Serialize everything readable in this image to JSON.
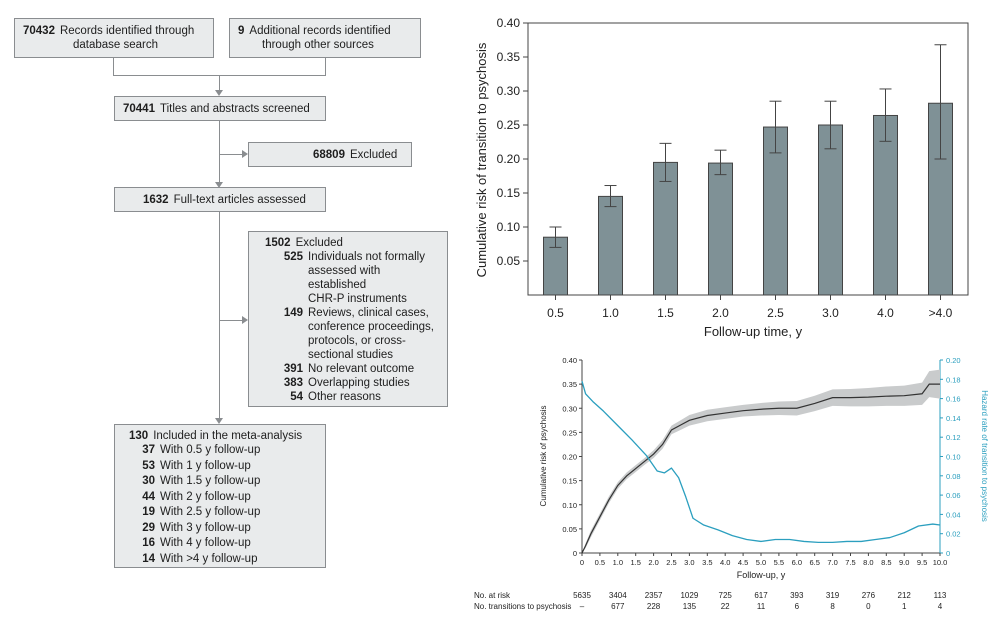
{
  "flow": {
    "records_db": {
      "n": "70432",
      "text1": "Records identified through",
      "text2": "database search"
    },
    "records_other": {
      "n": "9",
      "text1": "Additional records identified",
      "text2": "through other sources"
    },
    "screened": {
      "n": "70441",
      "text": "Titles and abstracts screened"
    },
    "excluded1": {
      "n": "68809",
      "text": "Excluded"
    },
    "fulltext": {
      "n": "1632",
      "text": "Full-text articles assessed"
    },
    "excluded2": {
      "n": "1502",
      "text": "Excluded",
      "items": [
        {
          "n": "525",
          "lines": [
            "Individuals not formally",
            "assessed with established",
            "CHR-P instruments"
          ]
        },
        {
          "n": "149",
          "lines": [
            "Reviews, clinical cases,",
            "conference proceedings,",
            "protocols, or cross-",
            "sectional studies"
          ]
        },
        {
          "n": "391",
          "lines": [
            "No relevant outcome"
          ]
        },
        {
          "n": "383",
          "lines": [
            "Overlapping studies"
          ]
        },
        {
          "n": "54",
          "lines": [
            "Other reasons"
          ]
        }
      ]
    },
    "included": {
      "n": "130",
      "text": "Included in the meta-analysis",
      "items": [
        {
          "n": "37",
          "text": "With 0.5 y follow-up"
        },
        {
          "n": "53",
          "text": "With 1 y follow-up"
        },
        {
          "n": "30",
          "text": "With 1.5 y follow-up"
        },
        {
          "n": "44",
          "text": "With 2 y follow-up"
        },
        {
          "n": "19",
          "text": "With 2.5 y follow-up"
        },
        {
          "n": "29",
          "text": "With 3 y follow-up"
        },
        {
          "n": "16",
          "text": "With 4 y follow-up"
        },
        {
          "n": "14",
          "text": "With >4 y follow-up"
        }
      ]
    }
  },
  "chart_data": [
    {
      "type": "bar",
      "title": "",
      "xlabel": "Follow-up time, y",
      "ylabel": "Cumulative risk of transition to psychosis",
      "ylim": [
        0,
        0.4
      ],
      "yticks": [
        "0.05",
        "0.10",
        "0.15",
        "0.20",
        "0.25",
        "0.30",
        "0.35",
        "0.40"
      ],
      "ytick_values": [
        0.05,
        0.1,
        0.15,
        0.2,
        0.25,
        0.3,
        0.35,
        0.4
      ],
      "categories": [
        "0.5",
        "1.0",
        "1.5",
        "2.0",
        "2.5",
        "3.0",
        "4.0",
        ">4.0"
      ],
      "values": [
        0.085,
        0.145,
        0.195,
        0.194,
        0.247,
        0.25,
        0.264,
        0.282
      ],
      "err_low": [
        0.07,
        0.13,
        0.167,
        0.177,
        0.209,
        0.215,
        0.226,
        0.2
      ],
      "err_high": [
        0.1,
        0.161,
        0.223,
        0.213,
        0.285,
        0.285,
        0.303,
        0.368
      ],
      "bar_color": "#7f9196"
    },
    {
      "type": "line",
      "title": "",
      "xlabel": "Follow-up, y",
      "ylabel": "Cumulative risk of psychosis",
      "y2label": "Hazard rate of transition to psychosis",
      "xlim": [
        0,
        10
      ],
      "ylim": [
        0,
        0.4
      ],
      "y2lim": [
        0,
        0.2
      ],
      "xticks": [
        "0",
        "0.5",
        "1.0",
        "1.5",
        "2.0",
        "2.5",
        "3.0",
        "3.5",
        "4.0",
        "4.5",
        "5.0",
        "5.5",
        "6.0",
        "6.5",
        "7.0",
        "7.5",
        "8.0",
        "8.5",
        "9.0",
        "9.5",
        "10.0"
      ],
      "yticks": [
        "0",
        "0.05",
        "0.10",
        "0.15",
        "0.20",
        "0.25",
        "0.30",
        "0.35",
        "0.40"
      ],
      "y2ticks": [
        "0",
        "0.02",
        "0.04",
        "0.06",
        "0.08",
        "0.10",
        "0.12",
        "0.14",
        "0.16",
        "0.18",
        "0.20"
      ],
      "series": [
        {
          "name": "Cumulative risk of psychosis",
          "color": "#333333",
          "x": [
            0,
            0.1,
            0.25,
            0.5,
            0.75,
            1.0,
            1.25,
            1.5,
            1.75,
            2.0,
            2.25,
            2.5,
            2.75,
            3.0,
            3.5,
            4.0,
            4.5,
            5.0,
            5.5,
            6.0,
            6.5,
            7.0,
            7.5,
            8.0,
            8.5,
            9.0,
            9.5,
            9.7,
            10.0
          ],
          "y": [
            0,
            0.015,
            0.04,
            0.075,
            0.11,
            0.14,
            0.16,
            0.175,
            0.19,
            0.205,
            0.225,
            0.255,
            0.265,
            0.275,
            0.285,
            0.29,
            0.295,
            0.298,
            0.3,
            0.3,
            0.31,
            0.322,
            0.322,
            0.323,
            0.325,
            0.326,
            0.33,
            0.35,
            0.35
          ],
          "lower": [
            0,
            0.01,
            0.033,
            0.068,
            0.103,
            0.133,
            0.153,
            0.168,
            0.183,
            0.197,
            0.216,
            0.246,
            0.255,
            0.264,
            0.273,
            0.278,
            0.283,
            0.285,
            0.286,
            0.285,
            0.294,
            0.305,
            0.304,
            0.304,
            0.305,
            0.305,
            0.307,
            0.323,
            0.32
          ],
          "upper": [
            0,
            0.02,
            0.047,
            0.082,
            0.117,
            0.147,
            0.167,
            0.182,
            0.197,
            0.213,
            0.234,
            0.264,
            0.275,
            0.286,
            0.297,
            0.302,
            0.307,
            0.311,
            0.314,
            0.315,
            0.326,
            0.339,
            0.34,
            0.342,
            0.345,
            0.347,
            0.353,
            0.377,
            0.38
          ]
        },
        {
          "name": "Hazard rate of transition to psychosis",
          "color": "#2b9fbf",
          "axis": "right",
          "x": [
            0,
            0.1,
            0.3,
            0.6,
            1.0,
            1.4,
            1.8,
            2.1,
            2.3,
            2.5,
            2.7,
            2.9,
            3.1,
            3.4,
            3.8,
            4.2,
            4.6,
            5.0,
            5.4,
            5.8,
            6.2,
            6.6,
            7.0,
            7.4,
            7.8,
            8.2,
            8.6,
            9.0,
            9.4,
            9.8,
            10.0
          ],
          "y": [
            0.178,
            0.165,
            0.157,
            0.147,
            0.132,
            0.117,
            0.101,
            0.085,
            0.083,
            0.088,
            0.078,
            0.058,
            0.036,
            0.029,
            0.024,
            0.018,
            0.014,
            0.012,
            0.014,
            0.014,
            0.012,
            0.011,
            0.011,
            0.012,
            0.012,
            0.014,
            0.016,
            0.021,
            0.028,
            0.03,
            0.029
          ]
        }
      ],
      "risk_table": {
        "row1_label": "No. at risk",
        "row2_label": "No. transitions to psychosis",
        "at_risk": [
          "5635",
          "3404",
          "2357",
          "1029",
          "725",
          "617",
          "393",
          "319",
          "276",
          "212",
          "113"
        ],
        "transitions": [
          "–",
          "677",
          "228",
          "135",
          "22",
          "11",
          "6",
          "8",
          "0",
          "1",
          "4"
        ]
      }
    }
  ]
}
